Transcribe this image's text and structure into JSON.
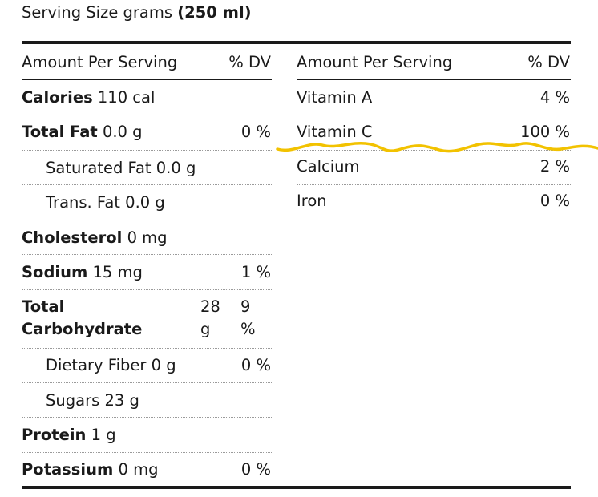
{
  "serving": {
    "label": "Serving Size grams",
    "value": "(250 ml)"
  },
  "headers": {
    "left_amount": "Amount Per Serving",
    "left_dv": "% DV",
    "right_amount": "Amount Per Serving",
    "right_dv": "% DV"
  },
  "left_rows": [
    {
      "name": "Calories",
      "amount": "110 cal",
      "dv": ""
    },
    {
      "name": "Total Fat",
      "amount": "0.0 g",
      "dv": "0 %"
    },
    {
      "name": "Saturated Fat",
      "amount": "0.0 g",
      "dv": ""
    },
    {
      "name": "Trans. Fat",
      "amount": "0.0 g",
      "dv": ""
    },
    {
      "name": "Cholesterol",
      "amount": "0 mg",
      "dv": ""
    },
    {
      "name": "Sodium",
      "amount": "15 mg",
      "dv": "1 %"
    },
    {
      "name_line1": "Total",
      "name_line2": "Carbohydrate",
      "amount_line1": "28",
      "amount_line2": "g",
      "dv_line1": "9",
      "dv_line2": "%"
    },
    {
      "name": "Dietary Fiber",
      "amount": "0 g",
      "dv": "0 %"
    },
    {
      "name": "Sugars",
      "amount": "23 g",
      "dv": ""
    },
    {
      "name": "Protein",
      "amount": "1 g",
      "dv": ""
    },
    {
      "name": "Potassium",
      "amount": "0 mg",
      "dv": "0 %"
    }
  ],
  "right_rows": [
    {
      "name": "Vitamin A",
      "dv": "4 %"
    },
    {
      "name": "Vitamin C",
      "dv": "100 %"
    },
    {
      "name": "Calcium",
      "dv": "2 %"
    },
    {
      "name": "Iron",
      "dv": "0 %"
    }
  ],
  "annotation": {
    "color": "#f2c200"
  }
}
